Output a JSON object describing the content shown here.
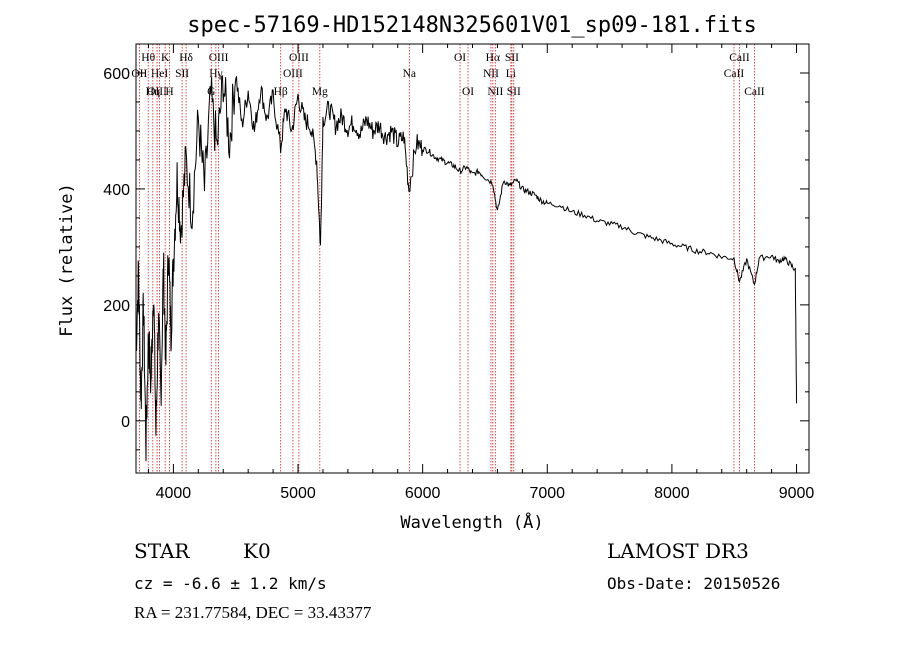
{
  "chart_data": {
    "type": "line",
    "title": "spec-57169-HD152148N325601V01_sp09-181.fits",
    "xlabel": "Wavelength (Å)",
    "ylabel": "Flux (relative)",
    "xlim": [
      3700,
      9100
    ],
    "ylim": [
      -90,
      650
    ],
    "x_ticks": [
      4000,
      5000,
      6000,
      7000,
      8000,
      9000
    ],
    "y_ticks": [
      0,
      200,
      400,
      600
    ],
    "grid": false,
    "series": [
      {
        "name": "flux",
        "x": [
          3700,
          3720,
          3740,
          3760,
          3780,
          3800,
          3820,
          3840,
          3860,
          3880,
          3900,
          3920,
          3940,
          3960,
          3980,
          4000,
          4030,
          4060,
          4100,
          4150,
          4200,
          4250,
          4300,
          4350,
          4400,
          4450,
          4500,
          4550,
          4600,
          4650,
          4700,
          4750,
          4800,
          4860,
          4900,
          4950,
          5000,
          5050,
          5100,
          5150,
          5180,
          5200,
          5250,
          5300,
          5350,
          5400,
          5450,
          5500,
          5550,
          5600,
          5650,
          5700,
          5750,
          5800,
          5850,
          5890,
          5950,
          6000,
          6050,
          6100,
          6150,
          6200,
          6250,
          6300,
          6350,
          6400,
          6450,
          6500,
          6563,
          6600,
          6650,
          6700,
          6750,
          6800,
          6850,
          6900,
          6950,
          7000,
          7100,
          7200,
          7300,
          7400,
          7500,
          7600,
          7700,
          7800,
          7900,
          8000,
          8100,
          8200,
          8300,
          8400,
          8498,
          8542,
          8600,
          8662,
          8700,
          8800,
          8850,
          8900,
          8950,
          8990,
          9000
        ],
        "y": [
          120,
          260,
          30,
          200,
          -40,
          150,
          60,
          240,
          -20,
          180,
          40,
          270,
          100,
          300,
          150,
          280,
          420,
          330,
          450,
          360,
          520,
          400,
          560,
          470,
          590,
          480,
          600,
          510,
          570,
          500,
          575,
          520,
          560,
          470,
          540,
          500,
          560,
          520,
          510,
          450,
          300,
          520,
          540,
          510,
          525,
          505,
          515,
          495,
          520,
          500,
          510,
          490,
          500,
          480,
          490,
          400,
          480,
          470,
          465,
          455,
          450,
          445,
          440,
          430,
          438,
          425,
          430,
          420,
          410,
          360,
          415,
          405,
          415,
          400,
          395,
          390,
          380,
          375,
          372,
          360,
          355,
          345,
          340,
          335,
          325,
          318,
          312,
          305,
          300,
          293,
          290,
          283,
          280,
          240,
          278,
          235,
          280,
          285,
          275,
          280,
          270,
          260,
          30
        ]
      }
    ],
    "spectral_lines": [
      {
        "label": "Hθ",
        "x": 3798,
        "row": 1
      },
      {
        "label": "OII",
        "x": 3727,
        "row": 2
      },
      {
        "label": "OIII",
        "x": 3869,
        "row": 3
      },
      {
        "label": "HeI",
        "x": 3889,
        "row": 2
      },
      {
        "label": "Hη",
        "x": 3835,
        "row": 3
      },
      {
        "label": "K",
        "x": 3934,
        "row": 1
      },
      {
        "label": "SII",
        "x": 4070,
        "row": 2
      },
      {
        "label": "H",
        "x": 3969,
        "row": 3
      },
      {
        "label": "Hδ",
        "x": 4102,
        "row": 1
      },
      {
        "label": "OIII",
        "x": 4363,
        "row": 1
      },
      {
        "label": "Hγ",
        "x": 4341,
        "row": 2
      },
      {
        "label": "G",
        "x": 4304,
        "row": 3
      },
      {
        "label": "OIII",
        "x": 5007,
        "row": 1
      },
      {
        "label": "OIII",
        "x": 4959,
        "row": 2
      },
      {
        "label": "Hβ",
        "x": 4861,
        "row": 3
      },
      {
        "label": "Mg",
        "x": 5175,
        "row": 3
      },
      {
        "label": "Na",
        "x": 5893,
        "row": 2
      },
      {
        "label": "OI",
        "x": 6300,
        "row": 1
      },
      {
        "label": "OI",
        "x": 6364,
        "row": 3
      },
      {
        "label": "Hα",
        "x": 6563,
        "row": 1
      },
      {
        "label": "SII",
        "x": 6716,
        "row": 1
      },
      {
        "label": "NII",
        "x": 6548,
        "row": 2
      },
      {
        "label": "Li",
        "x": 6708,
        "row": 2
      },
      {
        "label": "NII",
        "x": 6583,
        "row": 3
      },
      {
        "label": "SII",
        "x": 6731,
        "row": 3
      },
      {
        "label": "CaII",
        "x": 8542,
        "row": 1
      },
      {
        "label": "CaII",
        "x": 8498,
        "row": 2
      },
      {
        "label": "CaII",
        "x": 8662,
        "row": 3
      }
    ]
  },
  "info": {
    "object_class": "STAR",
    "subclass": "K0",
    "survey": "LAMOST DR3",
    "redshift": "cz = -6.6 ± 1.2 km/s",
    "obs_date": "Obs-Date: 20150526",
    "coords": "RA = 231.77584, DEC =  33.43377"
  },
  "colors": {
    "line_marker": "#cc2222",
    "spectrum": "#000000"
  }
}
